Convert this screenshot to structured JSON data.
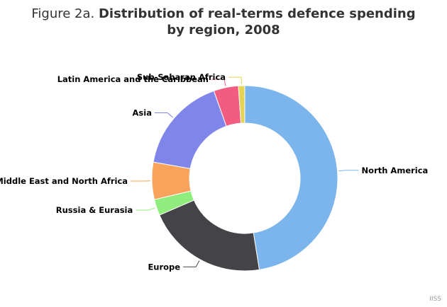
{
  "chart_data": {
    "type": "pie",
    "title_prefix": "Figure 2a. ",
    "title": "Distribution of real-terms defence spending by region, 2008",
    "donut": true,
    "legend": "none",
    "slices": [
      {
        "label": "North America",
        "value": 47.5,
        "color": "#7cb5ec"
      },
      {
        "label": "Europe",
        "value": 21.0,
        "color": "#434348"
      },
      {
        "label": "Russia & Eurasia",
        "value": 2.8,
        "color": "#90ed7d"
      },
      {
        "label": "Middle East and North Africa",
        "value": 6.5,
        "color": "#f7a35c"
      },
      {
        "label": "Asia",
        "value": 16.8,
        "color": "#8085e9"
      },
      {
        "label": "Latin America and the Caribbean",
        "value": 4.3,
        "color": "#f15c80"
      },
      {
        "label": "Sub-Saharan Africa",
        "value": 1.1,
        "color": "#e4d354"
      }
    ]
  },
  "credit": "IISS"
}
